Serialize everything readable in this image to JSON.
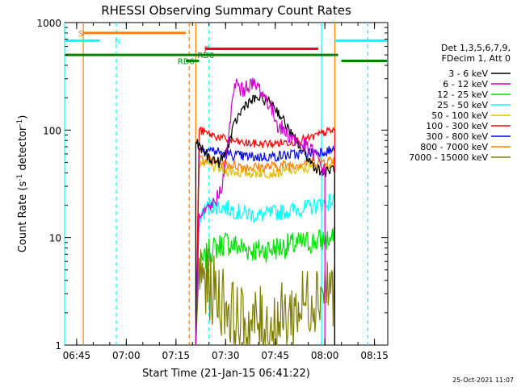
{
  "chart_data": {
    "type": "line",
    "title": "RHESSI Observing Summary Count Rates",
    "xlabel": "Start Time (21-Jan-15 06:41:22)",
    "ylabel_parts": [
      "Count Rate (s",
      "-1",
      " detector",
      "-1",
      ")"
    ],
    "yscale": "log",
    "ylim": [
      1,
      1000
    ],
    "xlim": [
      "06:41:22",
      "08:19:00"
    ],
    "x_ticks": [
      "06:45",
      "07:00",
      "07:15",
      "07:30",
      "07:45",
      "08:00",
      "08:15"
    ],
    "y_ticks": [
      "1",
      "10",
      "100",
      "1000"
    ],
    "timestamp": "25-Oct-2021 11:07",
    "legend_header": [
      "Det 1,3,5,6,7,9,",
      "FDecim 1, Att 0"
    ],
    "data_start": "07:21",
    "data_end": "08:03",
    "series": [
      {
        "name": "3 - 6 keV",
        "color": "#000000",
        "x": [
          "07:21",
          "07:22",
          "07:25",
          "07:28",
          "07:30",
          "07:33",
          "07:36",
          "07:40",
          "07:44",
          "07:47",
          "07:50",
          "07:54",
          "07:57",
          "08:00",
          "08:03"
        ],
        "y": [
          80,
          70,
          55,
          50,
          60,
          120,
          175,
          200,
          180,
          130,
          90,
          60,
          45,
          40,
          45
        ]
      },
      {
        "name": "6 - 12 keV",
        "color": "#cc00cc",
        "x": [
          "07:22",
          "07:25",
          "07:28",
          "07:30",
          "07:31",
          "07:33",
          "07:35",
          "07:37",
          "07:40",
          "07:43",
          "07:46",
          "07:50",
          "07:54",
          "07:57",
          "08:00"
        ],
        "y": [
          14,
          18,
          25,
          45,
          100,
          280,
          230,
          270,
          250,
          180,
          110,
          85,
          70,
          60,
          40
        ]
      },
      {
        "name": "12 - 25 keV",
        "color": "#00e000",
        "x": [
          "07:22",
          "07:25",
          "07:30",
          "07:35",
          "07:40",
          "07:45",
          "07:50",
          "07:55",
          "08:00",
          "08:03"
        ],
        "y": [
          5,
          7.5,
          9,
          8,
          7.5,
          8,
          8.5,
          9,
          9.5,
          9.5
        ]
      },
      {
        "name": "25 - 50 keV",
        "color": "#00ffff",
        "x": [
          "07:22",
          "07:25",
          "07:30",
          "07:35",
          "07:40",
          "07:45",
          "07:50",
          "07:55",
          "08:00",
          "08:03"
        ],
        "y": [
          15,
          20,
          19,
          17,
          16,
          17,
          18,
          19,
          21,
          22
        ]
      },
      {
        "name": "50 - 100 keV",
        "color": "#e0c000",
        "x": [
          "07:22",
          "07:25",
          "07:30",
          "07:35",
          "07:40",
          "07:45",
          "07:50",
          "07:55",
          "08:00",
          "08:03"
        ],
        "y": [
          50,
          47,
          42,
          40,
          40,
          40,
          42,
          44,
          47,
          48
        ]
      },
      {
        "name": "100 - 300 keV",
        "color": "#ff0000",
        "x": [
          "07:22",
          "07:25",
          "07:30",
          "07:35",
          "07:40",
          "07:45",
          "07:50",
          "07:55",
          "08:00",
          "08:03"
        ],
        "y": [
          100,
          92,
          82,
          76,
          74,
          75,
          78,
          83,
          95,
          100
        ]
      },
      {
        "name": "300 - 800 keV",
        "color": "#0000ff",
        "x": [
          "07:22",
          "07:25",
          "07:30",
          "07:35",
          "07:40",
          "07:45",
          "07:50",
          "07:55",
          "08:00",
          "08:03"
        ],
        "y": [
          70,
          66,
          60,
          57,
          56,
          57,
          59,
          61,
          64,
          65
        ]
      },
      {
        "name": "800 - 7000 keV",
        "color": "#ff8000",
        "x": [
          "07:22",
          "07:25",
          "07:30",
          "07:35",
          "07:40",
          "07:45",
          "07:50",
          "07:55",
          "08:00",
          "08:03"
        ],
        "y": [
          55,
          53,
          48,
          46,
          45,
          46,
          48,
          50,
          52,
          53
        ]
      },
      {
        "name": "7000 - 15000 keV",
        "color": "#808000",
        "x": [
          "07:22",
          "07:25",
          "07:28",
          "07:30",
          "07:33",
          "07:36",
          "07:40",
          "07:44",
          "07:48",
          "07:52",
          "07:56",
          "08:00",
          "08:03"
        ],
        "y": [
          5,
          3.5,
          2.8,
          2.5,
          1.7,
          1.5,
          1.6,
          1.5,
          1.8,
          2.2,
          2.8,
          3.5,
          3.3
        ]
      }
    ],
    "flags": [
      {
        "label": "S",
        "color": "#ff8000",
        "height": 800,
        "segments": [
          [
            "06:47",
            "07:18"
          ]
        ],
        "label_at": "06:45"
      },
      {
        "label": "N",
        "color": "#00ffff",
        "height": 680,
        "segments": [
          [
            "06:41:22",
            "06:52"
          ],
          [
            "08:03",
            "08:19"
          ]
        ],
        "label_at": "06:56"
      },
      {
        "label": "F",
        "color": "#ff0000",
        "height": 570,
        "segments": [
          [
            "07:24",
            "07:58"
          ]
        ],
        "label_at": "07:23"
      },
      {
        "label": "RD0",
        "color": "#008000",
        "height": 500,
        "segments": [
          [
            "06:41:22",
            "08:04"
          ]
        ],
        "label_at": "07:21"
      },
      {
        "label": "RD6",
        "color": "#008000",
        "height": 440,
        "segments": [
          [
            "07:18",
            "07:22"
          ],
          [
            "08:05",
            "08:19"
          ]
        ],
        "label_at": "07:15"
      }
    ],
    "vlines": [
      {
        "x": "06:41:22",
        "color": "#00ffff",
        "style": "solid"
      },
      {
        "x": "06:47",
        "color": "#ff8000",
        "style": "solid"
      },
      {
        "x": "06:57",
        "color": "#00ffff",
        "style": "dashed"
      },
      {
        "x": "07:19",
        "color": "#ff8000",
        "style": "dashed"
      },
      {
        "x": "07:21",
        "color": "#ff8000",
        "style": "solid"
      },
      {
        "x": "07:25",
        "color": "#00ffff",
        "style": "dashed"
      },
      {
        "x": "07:59",
        "color": "#00ffff",
        "style": "solid"
      },
      {
        "x": "08:03",
        "color": "#ff8000",
        "style": "solid"
      },
      {
        "x": "08:13",
        "color": "#00ffff",
        "style": "dashed"
      }
    ]
  }
}
